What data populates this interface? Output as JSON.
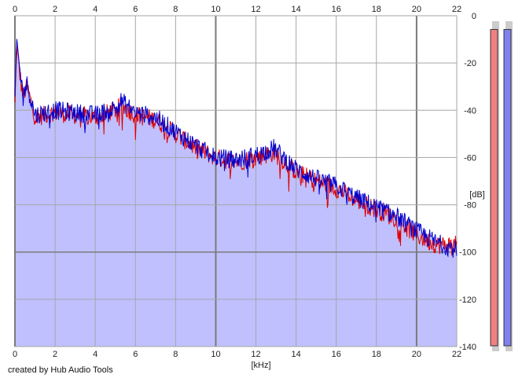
{
  "app": {
    "credit": "created by Hub Audio Tools"
  },
  "colors": {
    "fill": "#c0c0ff",
    "left_channel": "#e00000",
    "right_channel": "#0000d0",
    "grid": "#a6a6a6",
    "grid_major": "#7a7a7a",
    "meter_left": "#f08080",
    "meter_right": "#8080f0"
  },
  "chart_data": {
    "type": "line",
    "title": "",
    "xlabel": "[kHz]",
    "ylabel": "[dB]",
    "xlim": [
      0,
      22
    ],
    "ylim": [
      -140,
      0
    ],
    "x_ticks": [
      "0",
      "2",
      "4",
      "6",
      "8",
      "10",
      "12",
      "14",
      "16",
      "18",
      "20",
      "22"
    ],
    "y_ticks": [
      "0",
      "-20",
      "-40",
      "-60",
      "-80",
      "-100",
      "-120",
      "-140"
    ],
    "grid": true,
    "series": [
      {
        "channel": "left",
        "color": "#e00000",
        "x": [
          0,
          0.1,
          0.2,
          0.4,
          0.6,
          1,
          1.5,
          2,
          3,
          4,
          5,
          5.3,
          6,
          7,
          8,
          9,
          10,
          11,
          12,
          12.9,
          14,
          15,
          16,
          17,
          18,
          19,
          20,
          21,
          22
        ],
        "values": [
          -38,
          -12,
          -22,
          -34,
          -30,
          -43,
          -42,
          -41,
          -42,
          -43,
          -40,
          -38,
          -42,
          -44,
          -50,
          -56,
          -60,
          -62,
          -60,
          -58,
          -66,
          -70,
          -73,
          -78,
          -82,
          -86,
          -93,
          -97,
          -97
        ]
      },
      {
        "channel": "right",
        "color": "#0000d0",
        "x": [
          0,
          0.1,
          0.2,
          0.4,
          0.6,
          1,
          1.5,
          2,
          3,
          4,
          5,
          5.3,
          6,
          7,
          8,
          9,
          10,
          11,
          12,
          12.9,
          14,
          15,
          16,
          17,
          18,
          19,
          20,
          21,
          22
        ],
        "values": [
          -35,
          -10,
          -20,
          -33,
          -29,
          -42,
          -41,
          -40,
          -41,
          -42,
          -39,
          -36,
          -41,
          -43,
          -49,
          -55,
          -60,
          -61,
          -59,
          -56,
          -65,
          -69,
          -72,
          -77,
          -81,
          -85,
          -91,
          -96,
          -99
        ]
      }
    ],
    "meters": {
      "left_level": 0.97,
      "right_level": 0.97
    }
  }
}
